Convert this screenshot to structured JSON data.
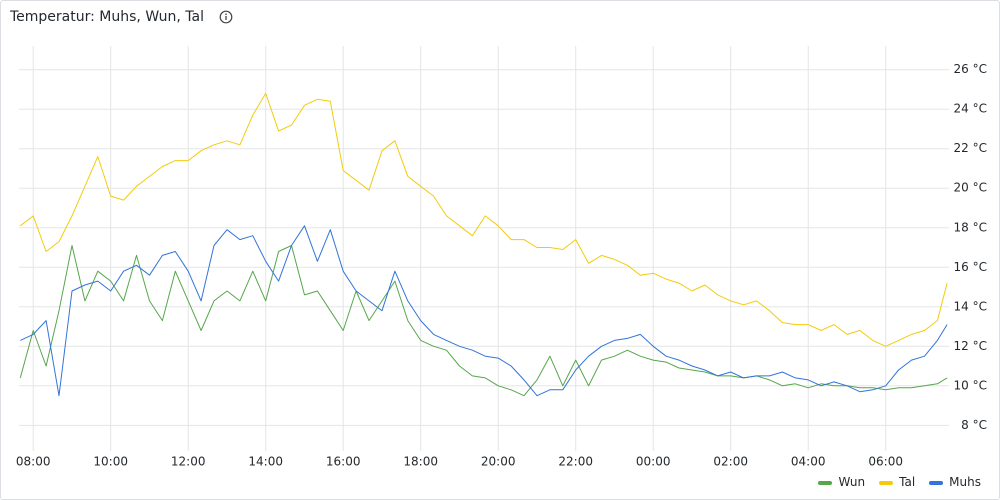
{
  "chart_data": {
    "type": "line",
    "title": "Temperatur: Muhs, Wun, Tal",
    "x": [
      "07:40",
      "08:00",
      "08:20",
      "08:40",
      "09:00",
      "09:20",
      "09:40",
      "10:00",
      "10:20",
      "10:40",
      "11:00",
      "11:20",
      "11:40",
      "12:00",
      "12:20",
      "12:40",
      "13:00",
      "13:20",
      "13:40",
      "14:00",
      "14:20",
      "14:40",
      "15:00",
      "15:20",
      "15:40",
      "16:00",
      "16:20",
      "16:40",
      "17:00",
      "17:20",
      "17:40",
      "18:00",
      "18:20",
      "18:40",
      "19:00",
      "19:20",
      "19:40",
      "20:00",
      "20:20",
      "20:40",
      "21:00",
      "21:20",
      "21:40",
      "22:00",
      "22:20",
      "22:40",
      "23:00",
      "23:20",
      "23:40",
      "00:00",
      "00:20",
      "00:40",
      "01:00",
      "01:20",
      "01:40",
      "02:00",
      "02:20",
      "02:40",
      "03:00",
      "03:20",
      "03:40",
      "04:00",
      "04:20",
      "04:40",
      "05:00",
      "05:20",
      "05:40",
      "06:00",
      "06:20",
      "06:40",
      "07:00",
      "07:20",
      "07:35"
    ],
    "series": [
      {
        "name": "Wun",
        "color": "#56a64b",
        "values": [
          10.4,
          12.8,
          11.0,
          13.8,
          17.1,
          14.3,
          15.8,
          15.3,
          14.3,
          16.6,
          14.3,
          13.3,
          15.8,
          14.3,
          12.8,
          14.3,
          14.8,
          14.3,
          15.8,
          14.3,
          16.8,
          17.1,
          14.6,
          14.8,
          13.8,
          12.8,
          14.8,
          13.3,
          14.3,
          15.3,
          13.3,
          12.3,
          12.0,
          11.8,
          11.0,
          10.5,
          10.4,
          10.0,
          9.8,
          9.5,
          10.3,
          11.5,
          10.0,
          11.3,
          10.0,
          11.3,
          11.5,
          11.8,
          11.5,
          11.3,
          11.2,
          10.9,
          10.8,
          10.7,
          10.5,
          10.5,
          10.4,
          10.5,
          10.3,
          10.0,
          10.1,
          9.9,
          10.1,
          10.0,
          10.0,
          9.9,
          9.9,
          9.8,
          9.9,
          9.9,
          10.0,
          10.1,
          10.4
        ]
      },
      {
        "name": "Tal",
        "color": "#f2cc0c",
        "values": [
          18.1,
          18.6,
          16.8,
          17.3,
          18.6,
          20.1,
          21.6,
          19.6,
          19.4,
          20.1,
          20.6,
          21.1,
          21.4,
          21.4,
          21.9,
          22.2,
          22.4,
          22.2,
          23.7,
          24.8,
          22.9,
          23.2,
          24.2,
          24.5,
          24.4,
          20.9,
          20.4,
          19.9,
          21.9,
          22.4,
          20.6,
          20.1,
          19.6,
          18.6,
          18.1,
          17.6,
          18.6,
          18.1,
          17.4,
          17.4,
          17.0,
          17.0,
          16.9,
          17.4,
          16.2,
          16.6,
          16.4,
          16.1,
          15.6,
          15.7,
          15.4,
          15.2,
          14.8,
          15.1,
          14.6,
          14.3,
          14.1,
          14.3,
          13.8,
          13.2,
          13.1,
          13.1,
          12.8,
          13.1,
          12.6,
          12.8,
          12.3,
          12.0,
          12.3,
          12.6,
          12.8,
          13.3,
          15.2
        ]
      },
      {
        "name": "Muhs",
        "color": "#3274d9",
        "values": [
          12.3,
          12.6,
          13.3,
          9.5,
          14.8,
          15.1,
          15.3,
          14.8,
          15.8,
          16.1,
          15.6,
          16.6,
          16.8,
          15.8,
          14.3,
          17.1,
          17.9,
          17.4,
          17.6,
          16.3,
          15.3,
          17.1,
          18.1,
          16.3,
          17.9,
          15.8,
          14.8,
          14.3,
          13.8,
          15.8,
          14.3,
          13.3,
          12.6,
          12.3,
          12.0,
          11.8,
          11.5,
          11.4,
          11.0,
          10.3,
          9.5,
          9.8,
          9.8,
          10.8,
          11.5,
          12.0,
          12.3,
          12.4,
          12.6,
          12.0,
          11.5,
          11.3,
          11.0,
          10.8,
          10.5,
          10.7,
          10.4,
          10.5,
          10.5,
          10.7,
          10.4,
          10.3,
          10.0,
          10.2,
          10.0,
          9.7,
          9.8,
          10.0,
          10.8,
          11.3,
          11.5,
          12.3,
          13.1
        ]
      }
    ],
    "xlim": [
      "07:38",
      "07:38"
    ],
    "xticks": [
      "08:00",
      "10:00",
      "12:00",
      "14:00",
      "16:00",
      "18:00",
      "20:00",
      "22:00",
      "00:00",
      "02:00",
      "04:00",
      "06:00"
    ],
    "ylim": [
      6.7,
      27.2
    ],
    "yticks": [
      {
        "value": 8,
        "label": "8 °C"
      },
      {
        "value": 10,
        "label": "10 °C"
      },
      {
        "value": 12,
        "label": "12 °C"
      },
      {
        "value": 14,
        "label": "14 °C"
      },
      {
        "value": 16,
        "label": "16 °C"
      },
      {
        "value": 18,
        "label": "18 °C"
      },
      {
        "value": 20,
        "label": "20 °C"
      },
      {
        "value": 22,
        "label": "22 °C"
      },
      {
        "value": 24,
        "label": "24 °C"
      },
      {
        "value": 26,
        "label": "26 °C"
      }
    ],
    "grid": true
  }
}
